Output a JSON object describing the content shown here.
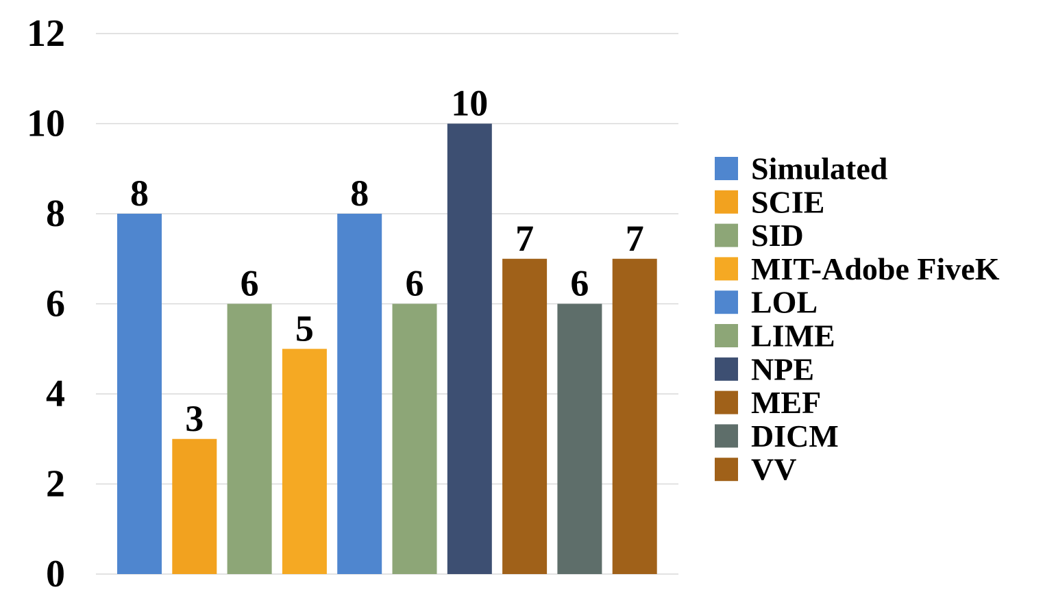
{
  "chart_data": {
    "type": "bar",
    "title": "",
    "xlabel": "",
    "ylabel": "",
    "ylim": [
      0,
      12
    ],
    "yticks": [
      0,
      2,
      4,
      6,
      8,
      10,
      12
    ],
    "grid": true,
    "legend_position": "right",
    "series": [
      {
        "name": "Simulated",
        "value": 8,
        "color": "#4f86cf"
      },
      {
        "name": "SCIE",
        "value": 3,
        "color": "#f2a21f"
      },
      {
        "name": "SID",
        "value": 6,
        "color": "#8da677"
      },
      {
        "name": "MIT-Adobe FiveK",
        "value": 5,
        "color": "#f5a923"
      },
      {
        "name": "LOL",
        "value": 8,
        "color": "#4f86cf"
      },
      {
        "name": "LIME",
        "value": 6,
        "color": "#8da677"
      },
      {
        "name": "NPE",
        "value": 10,
        "color": "#3d4f72"
      },
      {
        "name": "MEF",
        "value": 7,
        "color": "#a06119"
      },
      {
        "name": "DICM",
        "value": 6,
        "color": "#5e6e6a"
      },
      {
        "name": "VV",
        "value": 7,
        "color": "#a06119"
      }
    ]
  }
}
